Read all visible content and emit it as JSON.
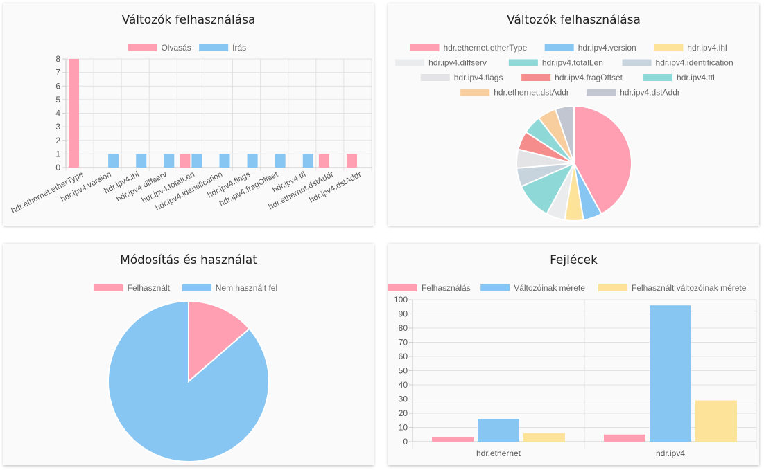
{
  "colors": {
    "pink": "#ff9fb1",
    "blue": "#87c5f2",
    "yellow": "#fde29a",
    "teal": "#8ed8d8",
    "lightgray": "#ebecee",
    "slate": "#c8d4dd",
    "red": "#f58d8d",
    "orange": "#f9ce9e",
    "gray": "#c2c6d0"
  },
  "cards": [
    {
      "title": "Változók felhasználása"
    },
    {
      "title": "Változók felhasználása"
    },
    {
      "title": "Módosítás és használat"
    },
    {
      "title": "Fejlécek"
    }
  ],
  "chart_data": [
    {
      "type": "bar",
      "title": "Változók felhasználása",
      "categories": [
        "hdr.ethernet.etherType",
        "hdr.ipv4.version",
        "hdr.ipv4.ihl",
        "hdr.ipv4.diffserv",
        "hdr.ipv4.totalLen",
        "hdr.ipv4.identification",
        "hdr.ipv4.flags",
        "hdr.ipv4.fragOffset",
        "hdr.ipv4.ttl",
        "hdr.ethernet.dstAddr",
        "hdr.ipv4.dstAddr"
      ],
      "series": [
        {
          "name": "Olvasás",
          "color": "#ff9fb1",
          "values": [
            8,
            0,
            0,
            0,
            1,
            0,
            0,
            0,
            0,
            1,
            1
          ]
        },
        {
          "name": "Írás",
          "color": "#87c5f2",
          "values": [
            0,
            1,
            1,
            1,
            1,
            1,
            1,
            1,
            1,
            0,
            0
          ]
        }
      ],
      "ylim": [
        0,
        8
      ],
      "yticks": [
        0,
        1,
        2,
        3,
        4,
        5,
        6,
        7,
        8
      ],
      "legend": "top",
      "grid": true
    },
    {
      "type": "pie",
      "title": "Változók felhasználása",
      "labels": [
        "hdr.ethernet.etherType",
        "hdr.ipv4.version",
        "hdr.ipv4.ihl",
        "hdr.ipv4.diffserv",
        "hdr.ipv4.totalLen",
        "hdr.ipv4.identification",
        "hdr.ipv4.flags",
        "hdr.ipv4.fragOffset",
        "hdr.ipv4.ttl",
        "hdr.ethernet.dstAddr",
        "hdr.ipv4.dstAddr"
      ],
      "values": [
        8,
        1,
        1,
        1,
        2,
        1,
        1,
        1,
        1,
        1,
        1
      ],
      "colors": [
        "#ff9fb1",
        "#87c5f2",
        "#fde29a",
        "#ebecee",
        "#8ed8d8",
        "#c8d4dd",
        "#e4e4e6",
        "#f58d8d",
        "#8ed8d8",
        "#f9ce9e",
        "#c2c6d0"
      ],
      "legend": "top"
    },
    {
      "type": "pie",
      "title": "Módosítás és használat",
      "labels": [
        "Felhasznált",
        "Nem használt fel"
      ],
      "values": [
        3,
        19
      ],
      "colors": [
        "#ff9fb1",
        "#87c5f2"
      ],
      "legend": "top"
    },
    {
      "type": "bar",
      "title": "Fejlécek",
      "categories": [
        "hdr.ethernet",
        "hdr.ipv4"
      ],
      "series": [
        {
          "name": "Felhasználás",
          "color": "#ff9fb1",
          "values": [
            3,
            5
          ]
        },
        {
          "name": "Változóinak mérete",
          "color": "#87c5f2",
          "values": [
            16,
            96
          ]
        },
        {
          "name": "Felhasznált változóinak mérete",
          "color": "#fde29a",
          "values": [
            6,
            29
          ]
        }
      ],
      "ylim": [
        0,
        100
      ],
      "yticks": [
        0,
        10,
        20,
        30,
        40,
        50,
        60,
        70,
        80,
        90,
        100
      ],
      "legend": "top",
      "grid": true
    }
  ]
}
